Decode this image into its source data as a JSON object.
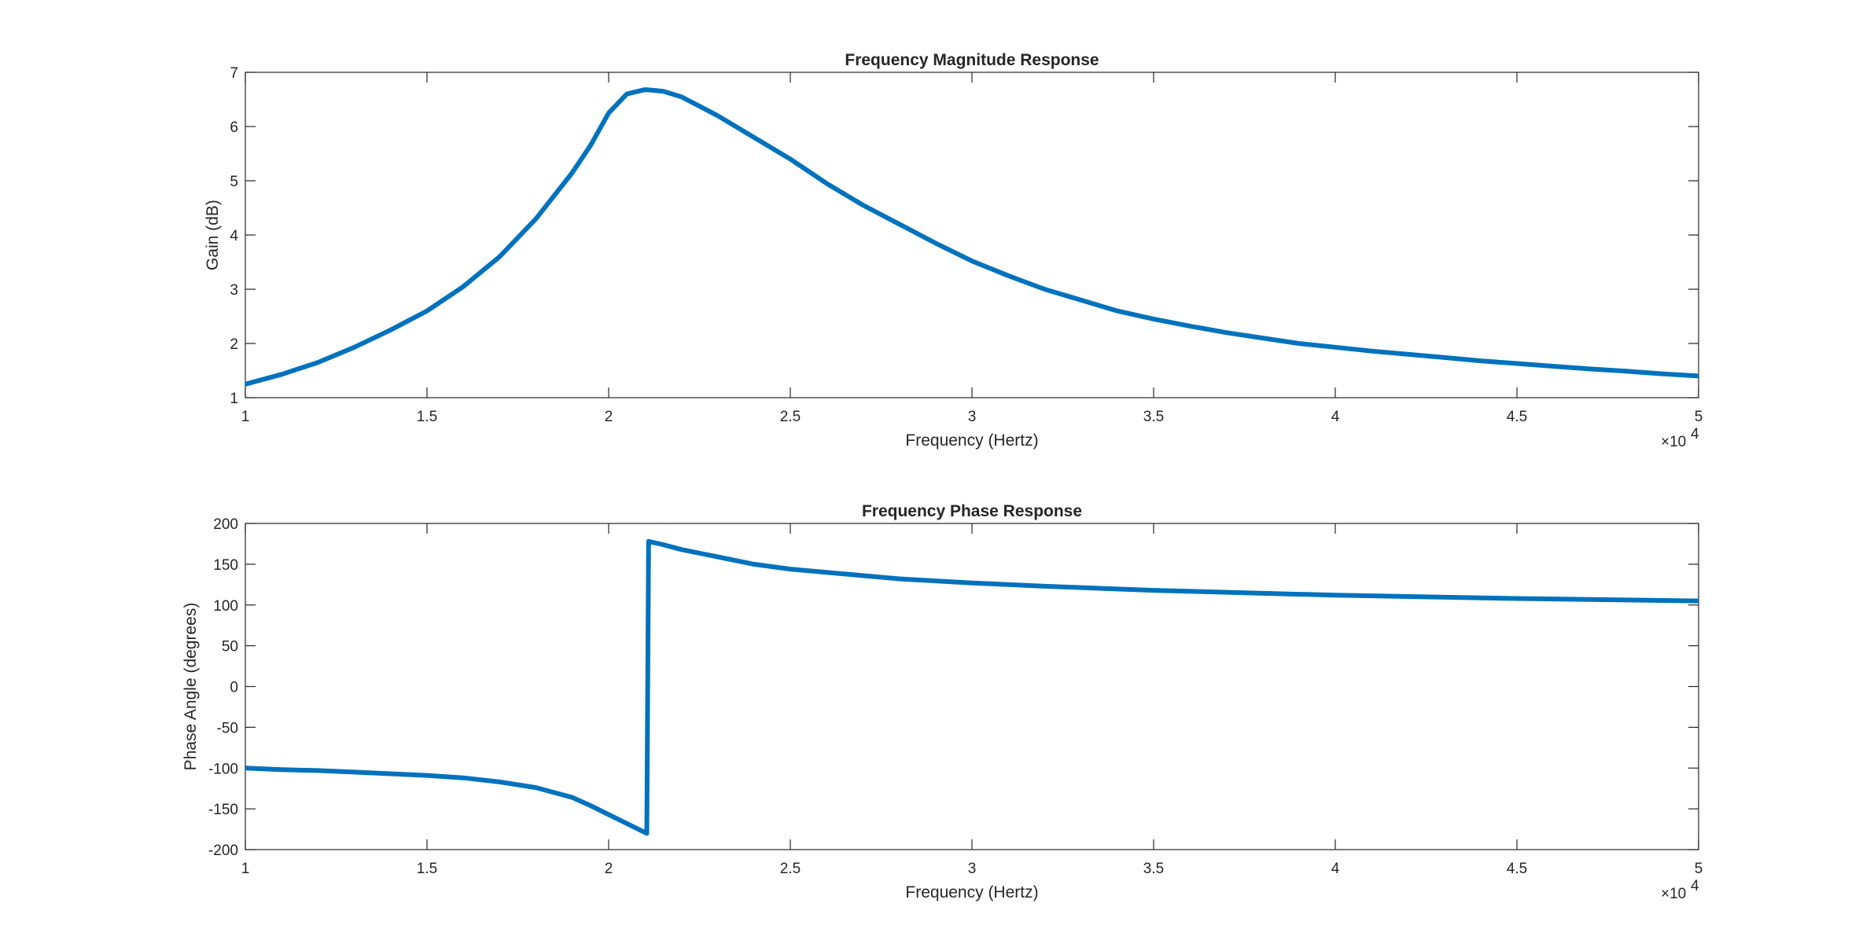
{
  "chart_data": [
    {
      "type": "line",
      "title": "Frequency Magnitude Response",
      "xlabel": "Frequency (Hertz)",
      "ylabel": "Gain (dB)",
      "xlim": [
        10000,
        50000
      ],
      "ylim": [
        1,
        7
      ],
      "x_ticks": [
        10000,
        15000,
        20000,
        25000,
        30000,
        35000,
        40000,
        45000,
        50000
      ],
      "x_tick_labels": [
        "1",
        "1.5",
        "2",
        "2.5",
        "3",
        "3.5",
        "4",
        "4.5",
        "5"
      ],
      "y_ticks": [
        1,
        2,
        3,
        4,
        5,
        6,
        7
      ],
      "y_tick_labels": [
        "1",
        "2",
        "3",
        "4",
        "5",
        "6",
        "7"
      ],
      "x_exponent_label": {
        "base": "×10",
        "exp": "4"
      },
      "grid": false,
      "color": "#0072BD",
      "series": [
        {
          "x": [
            10000,
            11000,
            12000,
            13000,
            14000,
            15000,
            16000,
            17000,
            18000,
            19000,
            19500,
            20000,
            20500,
            21000,
            21200,
            21500,
            22000,
            23000,
            24000,
            25000,
            26000,
            27000,
            28000,
            29000,
            30000,
            31000,
            32000,
            33000,
            34000,
            35000,
            36000,
            37000,
            38000,
            39000,
            40000,
            41000,
            42000,
            43000,
            44000,
            45000,
            46000,
            47000,
            48000,
            49000,
            50000
          ],
          "values": [
            1.25,
            1.43,
            1.65,
            1.93,
            2.25,
            2.6,
            3.05,
            3.6,
            4.3,
            5.15,
            5.65,
            6.25,
            6.6,
            6.68,
            6.67,
            6.65,
            6.55,
            6.2,
            5.8,
            5.4,
            4.95,
            4.55,
            4.2,
            3.85,
            3.52,
            3.25,
            3.0,
            2.8,
            2.6,
            2.45,
            2.32,
            2.2,
            2.1,
            2.0,
            1.93,
            1.86,
            1.8,
            1.74,
            1.68,
            1.63,
            1.58,
            1.53,
            1.49,
            1.44,
            1.4
          ]
        }
      ]
    },
    {
      "type": "line",
      "title": "Frequency Phase Response",
      "xlabel": "Frequency (Hertz)",
      "ylabel": "Phase Angle (degrees)",
      "xlim": [
        10000,
        50000
      ],
      "ylim": [
        -200,
        200
      ],
      "x_ticks": [
        10000,
        15000,
        20000,
        25000,
        30000,
        35000,
        40000,
        45000,
        50000
      ],
      "x_tick_labels": [
        "1",
        "1.5",
        "2",
        "2.5",
        "3",
        "3.5",
        "4",
        "4.5",
        "5"
      ],
      "y_ticks": [
        -200,
        -150,
        -100,
        -50,
        0,
        50,
        100,
        150,
        200
      ],
      "y_tick_labels": [
        "-200",
        "-150",
        "-100",
        "-50",
        "0",
        "50",
        "100",
        "150",
        "200"
      ],
      "x_exponent_label": {
        "base": "×10",
        "exp": "4"
      },
      "grid": false,
      "color": "#0072BD",
      "series": [
        {
          "x": [
            10000,
            11000,
            12000,
            13000,
            14000,
            15000,
            16000,
            17000,
            18000,
            19000,
            19500,
            20000,
            20500,
            21000,
            21050,
            21100,
            21200,
            21500,
            22000,
            23000,
            24000,
            25000,
            26000,
            27000,
            28000,
            30000,
            32000,
            35000,
            40000,
            45000,
            50000
          ],
          "values": [
            -100,
            -102,
            -103,
            -105,
            -107,
            -109,
            -112,
            -117,
            -124,
            -136,
            -146,
            -157,
            -168,
            -179,
            -180,
            178,
            177,
            174,
            168,
            159,
            150,
            144,
            140,
            136,
            132,
            127,
            123,
            118,
            112,
            108,
            105
          ]
        }
      ]
    }
  ]
}
